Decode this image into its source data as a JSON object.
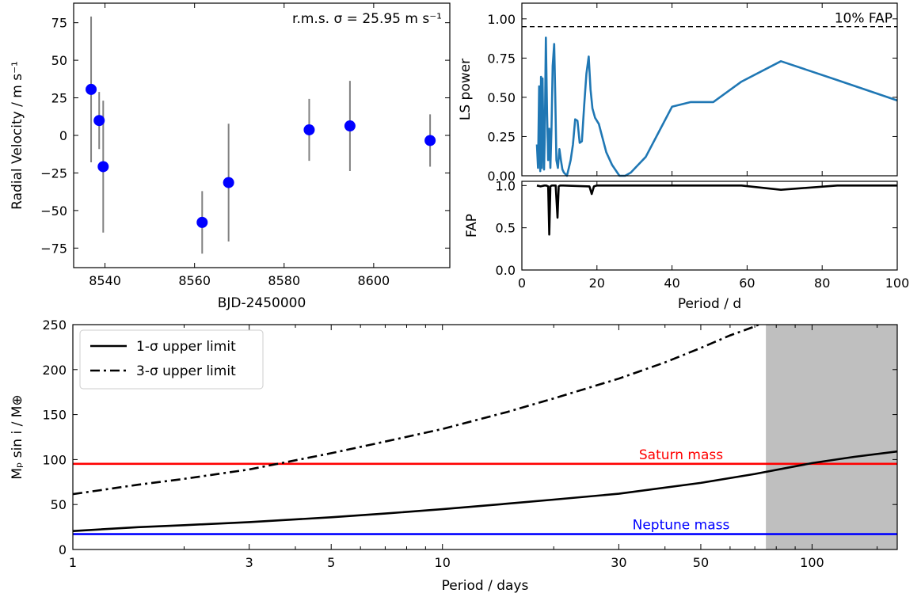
{
  "chart_data": [
    {
      "type": "scatter",
      "xlabel": "BJD-2450000",
      "ylabel": "Radial Velocity / m s⁻¹",
      "annotation": "r.m.s. σ = 25.95 m s⁻¹",
      "xlim": [
        8533,
        8617
      ],
      "ylim": [
        -88,
        88
      ],
      "xticks": [
        8540,
        8560,
        8580,
        8600
      ],
      "yticks": [
        -75,
        -50,
        -25,
        0,
        25,
        50,
        75
      ],
      "marker_color": "#0000ff",
      "errorbar_color": "#808080",
      "points": [
        {
          "x": 8536.9,
          "y": 30.6,
          "err": 48.5
        },
        {
          "x": 8538.7,
          "y": 9.9,
          "err": 19.0
        },
        {
          "x": 8539.6,
          "y": -20.8,
          "err": 43.9
        },
        {
          "x": 8561.7,
          "y": -57.9,
          "err": 20.8
        },
        {
          "x": 8567.6,
          "y": -31.4,
          "err": 39.2
        },
        {
          "x": 8585.6,
          "y": 3.7,
          "err": 20.6
        },
        {
          "x": 8594.7,
          "y": 6.3,
          "err": 30.0
        },
        {
          "x": 8612.6,
          "y": -3.4,
          "err": 17.4
        }
      ]
    },
    {
      "type": "line",
      "ylabel": "LS power",
      "xlim": [
        0,
        100
      ],
      "ylim": [
        0,
        1.1
      ],
      "yticks": [
        0.0,
        0.25,
        0.5,
        0.75,
        1.0
      ],
      "ytick_labels": [
        "0.00",
        "0.25",
        "0.50",
        "0.75",
        "1.00"
      ],
      "fap_level": 0.95,
      "fap_label": "10% FAP",
      "line_color": "#1f77b4",
      "x": [
        4.0,
        4.3,
        4.6,
        4.9,
        5.1,
        5.3,
        5.5,
        5.7,
        5.9,
        6.1,
        6.4,
        6.7,
        7.0,
        7.3,
        7.6,
        7.9,
        8.2,
        8.6,
        8.9,
        9.2,
        9.6,
        10.0,
        10.4,
        10.8,
        11.2,
        11.6,
        12.0,
        12.5,
        13.0,
        13.6,
        14.2,
        14.8,
        15.4,
        16.0,
        16.6,
        17.2,
        17.8,
        18.3,
        18.8,
        19.5,
        20.5,
        21.5,
        22.5,
        24.0,
        26.0,
        27.5,
        29.0,
        31.0,
        33.0,
        36.5,
        40.0,
        45.0,
        51.0,
        58.5,
        69.0,
        84.0,
        100.0
      ],
      "y": [
        0.2,
        0.05,
        0.57,
        0.03,
        0.63,
        0.05,
        0.62,
        0.3,
        0.04,
        0.25,
        0.88,
        0.4,
        0.1,
        0.3,
        0.05,
        0.3,
        0.7,
        0.84,
        0.5,
        0.1,
        0.05,
        0.17,
        0.1,
        0.04,
        0.02,
        0.01,
        0.0,
        0.05,
        0.1,
        0.2,
        0.36,
        0.35,
        0.21,
        0.22,
        0.45,
        0.65,
        0.76,
        0.55,
        0.43,
        0.37,
        0.33,
        0.24,
        0.15,
        0.07,
        0.0,
        0.0,
        0.02,
        0.07,
        0.12,
        0.28,
        0.44,
        0.47,
        0.47,
        0.6,
        0.73,
        0.61,
        0.48
      ]
    },
    {
      "type": "line",
      "xlabel": "Period / d",
      "ylabel": "FAP",
      "xlim": [
        0,
        100
      ],
      "ylim": [
        0,
        1.05
      ],
      "xticks": [
        0,
        20,
        40,
        60,
        80,
        100
      ],
      "yticks": [
        0.0,
        0.5,
        1.0
      ],
      "line_color": "#000000",
      "x": [
        4.0,
        5.0,
        6.0,
        6.5,
        7.0,
        7.3,
        7.6,
        8.0,
        9.0,
        9.5,
        9.8,
        10.2,
        11.0,
        18.0,
        18.6,
        19.2,
        20.0,
        40.0,
        58.5,
        69.0,
        84.0,
        100.0
      ],
      "y": [
        1.0,
        0.99,
        1.0,
        1.0,
        0.99,
        0.42,
        0.99,
        1.0,
        1.0,
        0.62,
        0.99,
        1.0,
        1.0,
        0.99,
        0.9,
        0.99,
        1.0,
        1.0,
        1.0,
        0.95,
        1.0,
        1.0
      ]
    },
    {
      "type": "line",
      "xlabel": "Period / days",
      "ylabel": "Mₚ sin i / M⊕",
      "xscale": "log",
      "xlim": [
        1,
        170
      ],
      "ylim": [
        0,
        250
      ],
      "xticks": [
        1,
        3,
        5,
        10,
        30,
        50,
        100
      ],
      "yticks": [
        0,
        50,
        100,
        150,
        200,
        250
      ],
      "shaded_region": [
        75,
        170
      ],
      "shade_color": "#bfbfbf",
      "series": [
        {
          "name": "1-σ upper limit",
          "style": "solid",
          "color": "#000000",
          "x": [
            1,
            1.5,
            2,
            3,
            5,
            7,
            10,
            15,
            20,
            30,
            50,
            70,
            100,
            130,
            170
          ],
          "y": [
            20.5,
            24.8,
            27.0,
            30.5,
            35.8,
            40.0,
            44.8,
            51.0,
            55.5,
            62.0,
            74.0,
            84.0,
            96.0,
            103.0,
            109.0
          ]
        },
        {
          "name": "3-σ upper limit",
          "style": "dashdot",
          "color": "#000000",
          "x": [
            1,
            1.5,
            2,
            3,
            5,
            7,
            10,
            15,
            20,
            30,
            40,
            50,
            60,
            70,
            75
          ],
          "y": [
            61.5,
            72.0,
            78.5,
            89.0,
            107.0,
            120.0,
            134.0,
            153.0,
            168.0,
            190.0,
            208.0,
            224.0,
            238.0,
            248.0,
            254.0
          ]
        }
      ],
      "reference_lines": [
        {
          "label": "Saturn mass",
          "y": 95.2,
          "color": "#ff0000"
        },
        {
          "label": "Neptune mass",
          "y": 17.1,
          "color": "#0000ff"
        }
      ]
    }
  ]
}
